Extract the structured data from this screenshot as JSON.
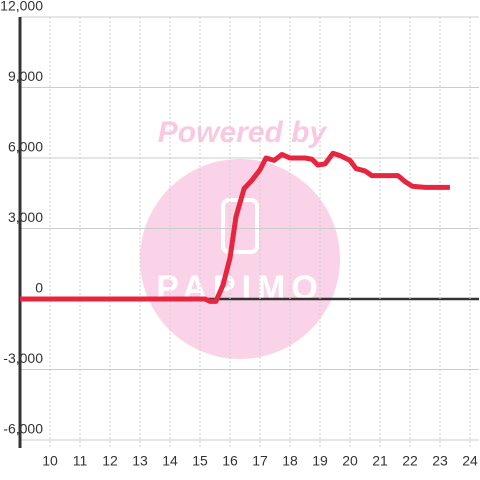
{
  "chart_data": {
    "type": "line",
    "watermark": "Powered by",
    "logo": "PAPIMO",
    "x": [
      9,
      15.17,
      15.33,
      15.53,
      15.77,
      16.0,
      16.2,
      16.47,
      16.73,
      17.0,
      17.2,
      17.47,
      17.73,
      18.0,
      18.5,
      18.73,
      18.93,
      19.17,
      19.43,
      19.67,
      20.0,
      20.2,
      20.5,
      20.73,
      21.0,
      21.6,
      21.83,
      22.07,
      22.5,
      23.33
    ],
    "series": [
      {
        "color": "#e8253f",
        "values": [
          0,
          0,
          -100,
          -100,
          600,
          1750,
          3500,
          4700,
          5050,
          5500,
          6000,
          5900,
          6150,
          6000,
          6000,
          5950,
          5700,
          5750,
          6200,
          6100,
          5900,
          5550,
          5450,
          5250,
          5250,
          5250,
          5000,
          4800,
          4750,
          4750
        ]
      }
    ],
    "xlim": [
      9,
      24.3
    ],
    "xticks": [
      10,
      11,
      12,
      13,
      14,
      15,
      16,
      17,
      18,
      19,
      20,
      21,
      22,
      23,
      24
    ],
    "ylim": [
      -6000,
      12000
    ],
    "yticks": [
      {
        "value": -6000,
        "label": "-6,000"
      },
      {
        "value": -3000,
        "label": "-3,000"
      },
      0,
      {
        "value": 3000,
        "label": "3,000"
      },
      {
        "value": 6000,
        "label": "6,000"
      },
      {
        "value": 9000,
        "label": "9,000"
      },
      {
        "value": 12000,
        "label": "12,000"
      }
    ],
    "grid": true
  }
}
